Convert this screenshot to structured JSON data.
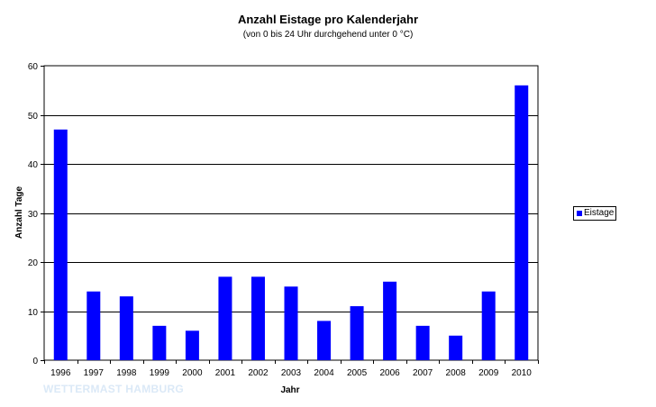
{
  "chart_data": {
    "type": "bar",
    "title": "Anzahl Eistage pro Kalenderjahr",
    "subtitle": "(von 0 bis 24 Uhr durchgehend unter 0 °C)",
    "xlabel": "Jahr",
    "ylabel": "Anzahl Tage",
    "categories": [
      "1996",
      "1997",
      "1998",
      "1999",
      "2000",
      "2001",
      "2002",
      "2003",
      "2004",
      "2005",
      "2006",
      "2007",
      "2008",
      "2009",
      "2010"
    ],
    "series": [
      {
        "name": "Eistage",
        "values": [
          47,
          14,
          13,
          7,
          6,
          17,
          17,
          15,
          8,
          11,
          16,
          7,
          5,
          14,
          56
        ]
      }
    ],
    "ylim": [
      0,
      60
    ],
    "yticks": [
      "0",
      "10",
      "20",
      "30",
      "40",
      "50",
      "60"
    ],
    "grid": "horizontal",
    "legend_position": "right",
    "bar_color": "#0000ff"
  },
  "watermark": "WETTERMAST HAMBURG"
}
